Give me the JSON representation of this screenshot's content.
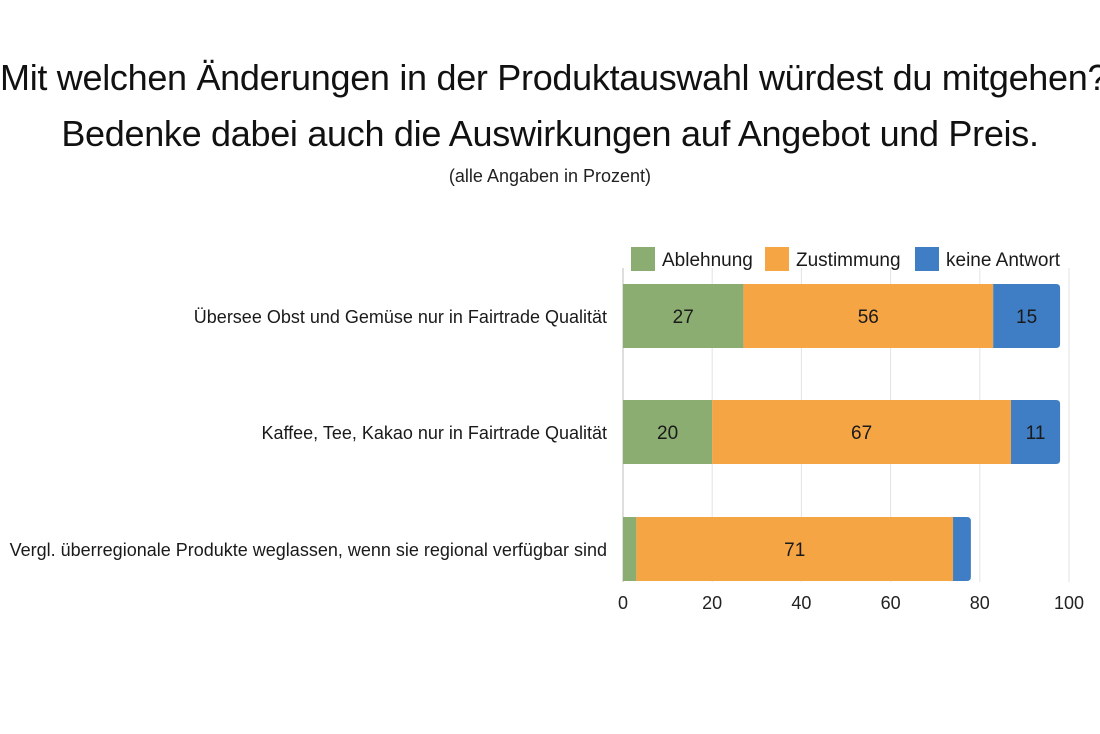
{
  "title_line1": "Mit welchen Änderungen in der Produktauswahl würdest du mitgehen?",
  "title_line2": "Bedenke dabei auch die Auswirkungen auf Angebot und Preis.",
  "subtitle": "(alle Angaben in Prozent)",
  "chart_data": {
    "type": "bar",
    "orientation": "horizontal",
    "stacked": true,
    "title": "Mit welchen Änderungen in der Produktauswahl würdest du mitgehen? Bedenke dabei auch die Auswirkungen auf Angebot und Preis.",
    "subtitle": "(alle Angaben in Prozent)",
    "categories": [
      "Übersee Obst und Gemüse nur in Fairtrade Qualität",
      "Kaffee, Tee, Kakao nur in Fairtrade Qualität",
      "Vergl. überregionale Produkte weglassen, wenn sie regional verfügbar sind"
    ],
    "series": [
      {
        "name": "Ablehnung",
        "color": "#8bad72",
        "values": [
          27,
          20,
          3
        ],
        "labels": [
          "27",
          "20",
          ""
        ]
      },
      {
        "name": "Zustimmung",
        "color": "#f6a545",
        "values": [
          56,
          67,
          71
        ],
        "labels": [
          "56",
          "67",
          "71"
        ]
      },
      {
        "name": "keine Antwort",
        "color": "#3f7ec4",
        "values": [
          15,
          11,
          4
        ],
        "labels": [
          "15",
          "11",
          ""
        ]
      }
    ],
    "xlim": [
      0,
      100
    ],
    "xticks": [
      0,
      20,
      40,
      60,
      80,
      100
    ],
    "grid": "vertical",
    "legend": "top-right"
  }
}
